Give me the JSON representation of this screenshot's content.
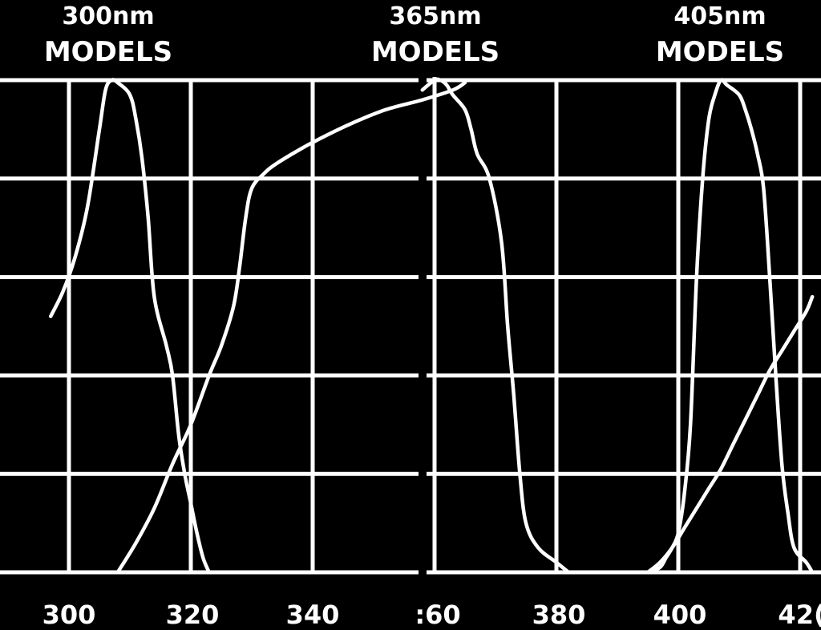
{
  "chart_data": {
    "type": "line",
    "title": "",
    "xlabel": "",
    "ylabel": "",
    "grid": true,
    "xlim": [
      297,
      422
    ],
    "ylim": [
      0,
      100
    ],
    "x_ticks": [
      "300",
      "320",
      "340",
      ":60",
      "380",
      "400",
      "42("
    ],
    "panels": [
      {
        "label_line1": "300nm",
        "label_line2": "MODELS",
        "xlim": [
          297,
          366
        ],
        "series": [
          {
            "points": [
              [
                308,
                0
              ],
              [
                311,
                6
              ],
              [
                314,
                13
              ],
              [
                317,
                22
              ],
              [
                320,
                30
              ],
              [
                323,
                40
              ],
              [
                325,
                46
              ],
              [
                327,
                54
              ],
              [
                328,
                62
              ],
              [
                329,
                72
              ],
              [
                330,
                78
              ],
              [
                332,
                81
              ],
              [
                334,
                83
              ],
              [
                338,
                86
              ],
              [
                341,
                88
              ],
              [
                346,
                91
              ],
              [
                352,
                94
              ],
              [
                358,
                96
              ],
              [
                363,
                98
              ],
              [
                365,
                99.5
              ]
            ]
          },
          {
            "points": [
              [
                297,
                52
              ],
              [
                299,
                57
              ],
              [
                301,
                64
              ],
              [
                303,
                74
              ],
              [
                305,
                90
              ],
              [
                306,
                98
              ],
              [
                307,
                100
              ],
              [
                308,
                99.5
              ],
              [
                310,
                97
              ],
              [
                311,
                92
              ],
              [
                312,
                84
              ],
              [
                313,
                72
              ],
              [
                314,
                56
              ],
              [
                316,
                46
              ],
              [
                317,
                40
              ],
              [
                318,
                28
              ],
              [
                319,
                20
              ],
              [
                320,
                14
              ],
              [
                321,
                8
              ],
              [
                322,
                3
              ],
              [
                323,
                0
              ]
            ]
          }
        ]
      },
      {
        "label_line1": "365nm",
        "label_line2": "MODELS",
        "xlim": [
          358,
          382
        ],
        "series": [
          {
            "points": [
              [
                358,
                98
              ],
              [
                360,
                100
              ],
              [
                361,
                100
              ],
              [
                362,
                99
              ],
              [
                363,
                97
              ],
              [
                365,
                94
              ],
              [
                366,
                90
              ],
              [
                367,
                85
              ],
              [
                369,
                80
              ],
              [
                371,
                67
              ],
              [
                372,
                50
              ],
              [
                373,
                36
              ],
              [
                374,
                20
              ],
              [
                375,
                10
              ],
              [
                377,
                5
              ],
              [
                380,
                2
              ],
              [
                382,
                0
              ]
            ]
          }
        ]
      },
      {
        "label_line1": "405nm",
        "label_line2": "MODELS",
        "xlim": [
          395,
          422
        ],
        "series": [
          {
            "points": [
              [
                395,
                0
              ],
              [
                397,
                1
              ],
              [
                398,
                3
              ],
              [
                399,
                5
              ],
              [
                400,
                8
              ],
              [
                401,
                16
              ],
              [
                402,
                30
              ],
              [
                403,
                60
              ],
              [
                404,
                80
              ],
              [
                405,
                92
              ],
              [
                406,
                97
              ],
              [
                407,
                100
              ],
              [
                408,
                99
              ],
              [
                410,
                97
              ],
              [
                411,
                94
              ],
              [
                412,
                90
              ],
              [
                413,
                85
              ],
              [
                414,
                78
              ],
              [
                415,
                60
              ],
              [
                416,
                40
              ],
              [
                417,
                22
              ],
              [
                418,
                12
              ],
              [
                419,
                5
              ],
              [
                421,
                2
              ],
              [
                422,
                0
              ]
            ]
          },
          {
            "points": [
              [
                395,
                0
              ],
              [
                397,
                2
              ],
              [
                399,
                5
              ],
              [
                401,
                9
              ],
              [
                403,
                13
              ],
              [
                405,
                17
              ],
              [
                407,
                21
              ],
              [
                409,
                26
              ],
              [
                411,
                31
              ],
              [
                413,
                36
              ],
              [
                415,
                41
              ],
              [
                417,
                45
              ],
              [
                419,
                49
              ],
              [
                421,
                53
              ],
              [
                422,
                56
              ]
            ]
          }
        ]
      }
    ]
  }
}
